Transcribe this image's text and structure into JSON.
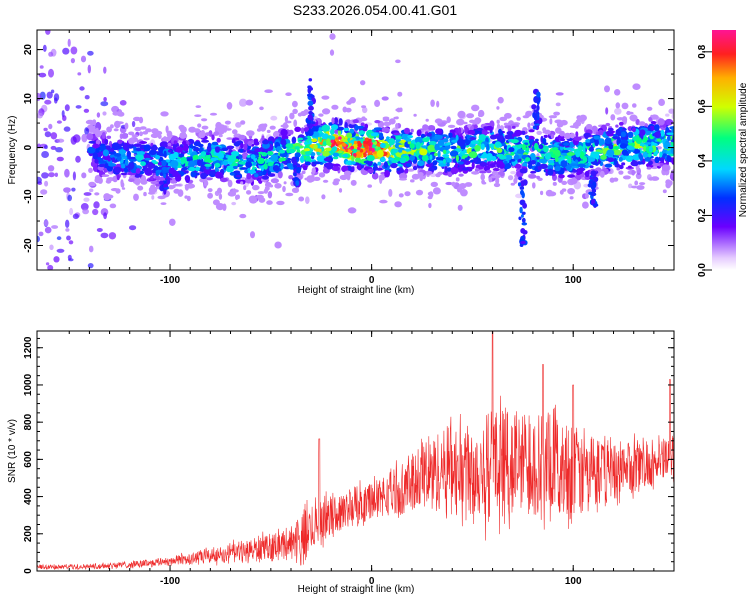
{
  "title": "S233.2026.054.00.41.G01",
  "colors": {
    "snr_line": "#ee2a2a",
    "scatter_core": "#6a0ee8",
    "scatter_faint": "#d8b4ff",
    "background": "#ffffff"
  },
  "chart_data": [
    {
      "type": "heatmap",
      "title": "",
      "xlabel": "Height of straight line (km)",
      "ylabel": "Frequency (Hz)",
      "xlim": [
        -166,
        150
      ],
      "ylim": [
        -25,
        24
      ],
      "xticks": [
        -100,
        0,
        100
      ],
      "yticks": [
        -20,
        -10,
        0,
        10,
        20
      ],
      "grid": false,
      "colormap": "rainbow",
      "ridge": {
        "description_points_x": [
          -166,
          -130,
          -100,
          -80,
          -60,
          -40,
          -30,
          -20,
          -10,
          0,
          10,
          20,
          40,
          60,
          80,
          100,
          120,
          150
        ],
        "center_y": [
          2,
          -2,
          -3,
          -2,
          -3,
          -1,
          0,
          1,
          0,
          0,
          -1,
          0,
          -1,
          0,
          -1,
          -2,
          0,
          1
        ],
        "peak_amplitude": [
          0.15,
          0.35,
          0.45,
          0.5,
          0.5,
          0.55,
          0.65,
          0.8,
          0.85,
          0.88,
          0.7,
          0.6,
          0.55,
          0.55,
          0.55,
          0.5,
          0.6,
          0.55
        ]
      },
      "colorbar": {
        "label": "Normalized spectral amplitude",
        "range": [
          0,
          0.88
        ],
        "ticks": [
          "0.0",
          "0.2",
          "0.4",
          "0.6",
          "0.8"
        ],
        "tick_values": [
          0.0,
          0.2,
          0.4,
          0.6,
          0.8
        ]
      }
    },
    {
      "type": "line",
      "title": "",
      "xlabel": "Height of straight line (km)",
      "ylabel": "SNR (10 * v/v)",
      "xlim": [
        -166,
        150
      ],
      "ylim": [
        0,
        1290
      ],
      "xticks": [
        -100,
        0,
        100
      ],
      "yticks": [
        0,
        200,
        400,
        600,
        800,
        1000,
        1200
      ],
      "grid": false,
      "series": [
        {
          "x": [
            -166,
            -140,
            -120,
            -100,
            -80,
            -60,
            -40,
            -32,
            -28,
            -20,
            -10,
            0,
            10,
            20,
            30,
            40,
            50,
            60,
            70,
            80,
            90,
            100,
            110,
            120,
            130,
            140,
            150
          ],
          "mean": [
            20,
            25,
            35,
            55,
            80,
            110,
            150,
            200,
            260,
            300,
            340,
            380,
            420,
            470,
            530,
            560,
            560,
            560,
            580,
            580,
            560,
            540,
            530,
            540,
            560,
            580,
            600
          ],
          "spread": [
            15,
            15,
            20,
            30,
            50,
            70,
            100,
            200,
            150,
            120,
            120,
            130,
            150,
            180,
            250,
            300,
            320,
            360,
            360,
            340,
            320,
            300,
            250,
            200,
            160,
            140,
            150
          ]
        }
      ],
      "peaks": [
        {
          "x": -26,
          "y": 710
        },
        {
          "x": 60,
          "y": 1290
        },
        {
          "x": 85,
          "y": 1110
        },
        {
          "x": 100,
          "y": 1000
        },
        {
          "x": 148,
          "y": 1030
        }
      ]
    }
  ]
}
